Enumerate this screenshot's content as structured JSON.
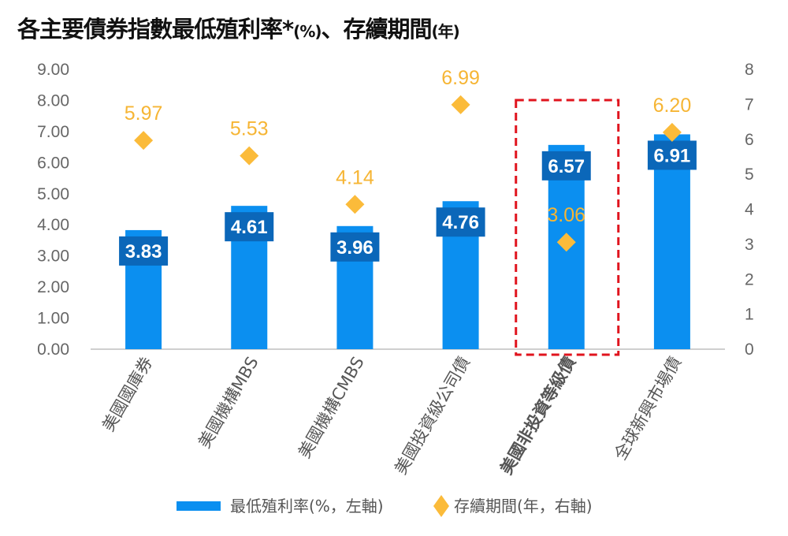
{
  "chart_data": {
    "type": "bar",
    "title": "各主要債券指數最低殖利率*",
    "title_suffix_1": "(%)",
    "title_middle": "、存續期間",
    "title_suffix_2": "(年)",
    "categories": [
      "美國國庫券",
      "美國機構MBS",
      "美國機構CMBS",
      "美國投資級公司債",
      "美國非投資等級債",
      "全球新興市場債"
    ],
    "highlighted_category": "美國非投資等級債",
    "series": [
      {
        "name": "最低殖利率(%，左軸)",
        "type": "bar",
        "axis": "left",
        "color": "#0b8ff0",
        "values": [
          3.83,
          4.61,
          3.96,
          4.76,
          6.57,
          6.91
        ],
        "labels": [
          "3.83",
          "4.61",
          "3.96",
          "4.76",
          "6.57",
          "6.91"
        ]
      },
      {
        "name": "存續期間(年，右軸)",
        "type": "scatter",
        "marker": "diamond",
        "axis": "right",
        "color": "#fbbb3a",
        "values": [
          5.97,
          5.53,
          4.14,
          6.99,
          3.06,
          6.2
        ],
        "labels": [
          "5.97",
          "5.53",
          "4.14",
          "6.99",
          "3.06",
          "6.20"
        ]
      }
    ],
    "y_left": {
      "range": [
        0,
        9
      ],
      "ticks": [
        "0.00",
        "1.00",
        "2.00",
        "3.00",
        "4.00",
        "5.00",
        "6.00",
        "7.00",
        "8.00",
        "9.00"
      ]
    },
    "y_right": {
      "range": [
        0,
        8
      ],
      "ticks": [
        "0",
        "1",
        "2",
        "3",
        "4",
        "5",
        "6",
        "7",
        "8"
      ]
    },
    "grid": false,
    "legend": "bottom",
    "label_box_color": "#0b67b9",
    "highlight_color": "#e0141e"
  }
}
